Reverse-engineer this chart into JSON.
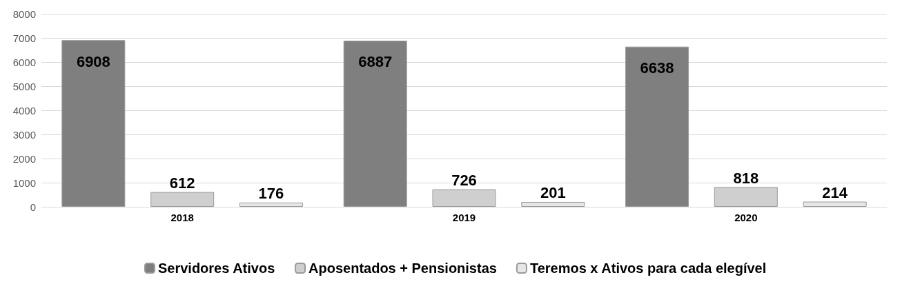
{
  "chart_data": {
    "type": "bar",
    "categories": [
      "2018",
      "2019",
      "2020"
    ],
    "series": [
      {
        "name": "Servidores Ativos",
        "color": "#7f7f7f",
        "values": [
          6908,
          6887,
          6638
        ]
      },
      {
        "name": "Aposentados + Pensionistas",
        "color": "#cfcfcf",
        "values": [
          612,
          726,
          818
        ]
      },
      {
        "name": "Teremos x Ativos para cada elegível",
        "color": "#e6e6e6",
        "values": [
          176,
          201,
          214
        ]
      }
    ],
    "ylim": [
      0,
      8000
    ],
    "yticks": [
      0,
      1000,
      2000,
      3000,
      4000,
      5000,
      6000,
      7000,
      8000
    ],
    "grid": "y",
    "legend": "bottom",
    "data_labels": true
  }
}
